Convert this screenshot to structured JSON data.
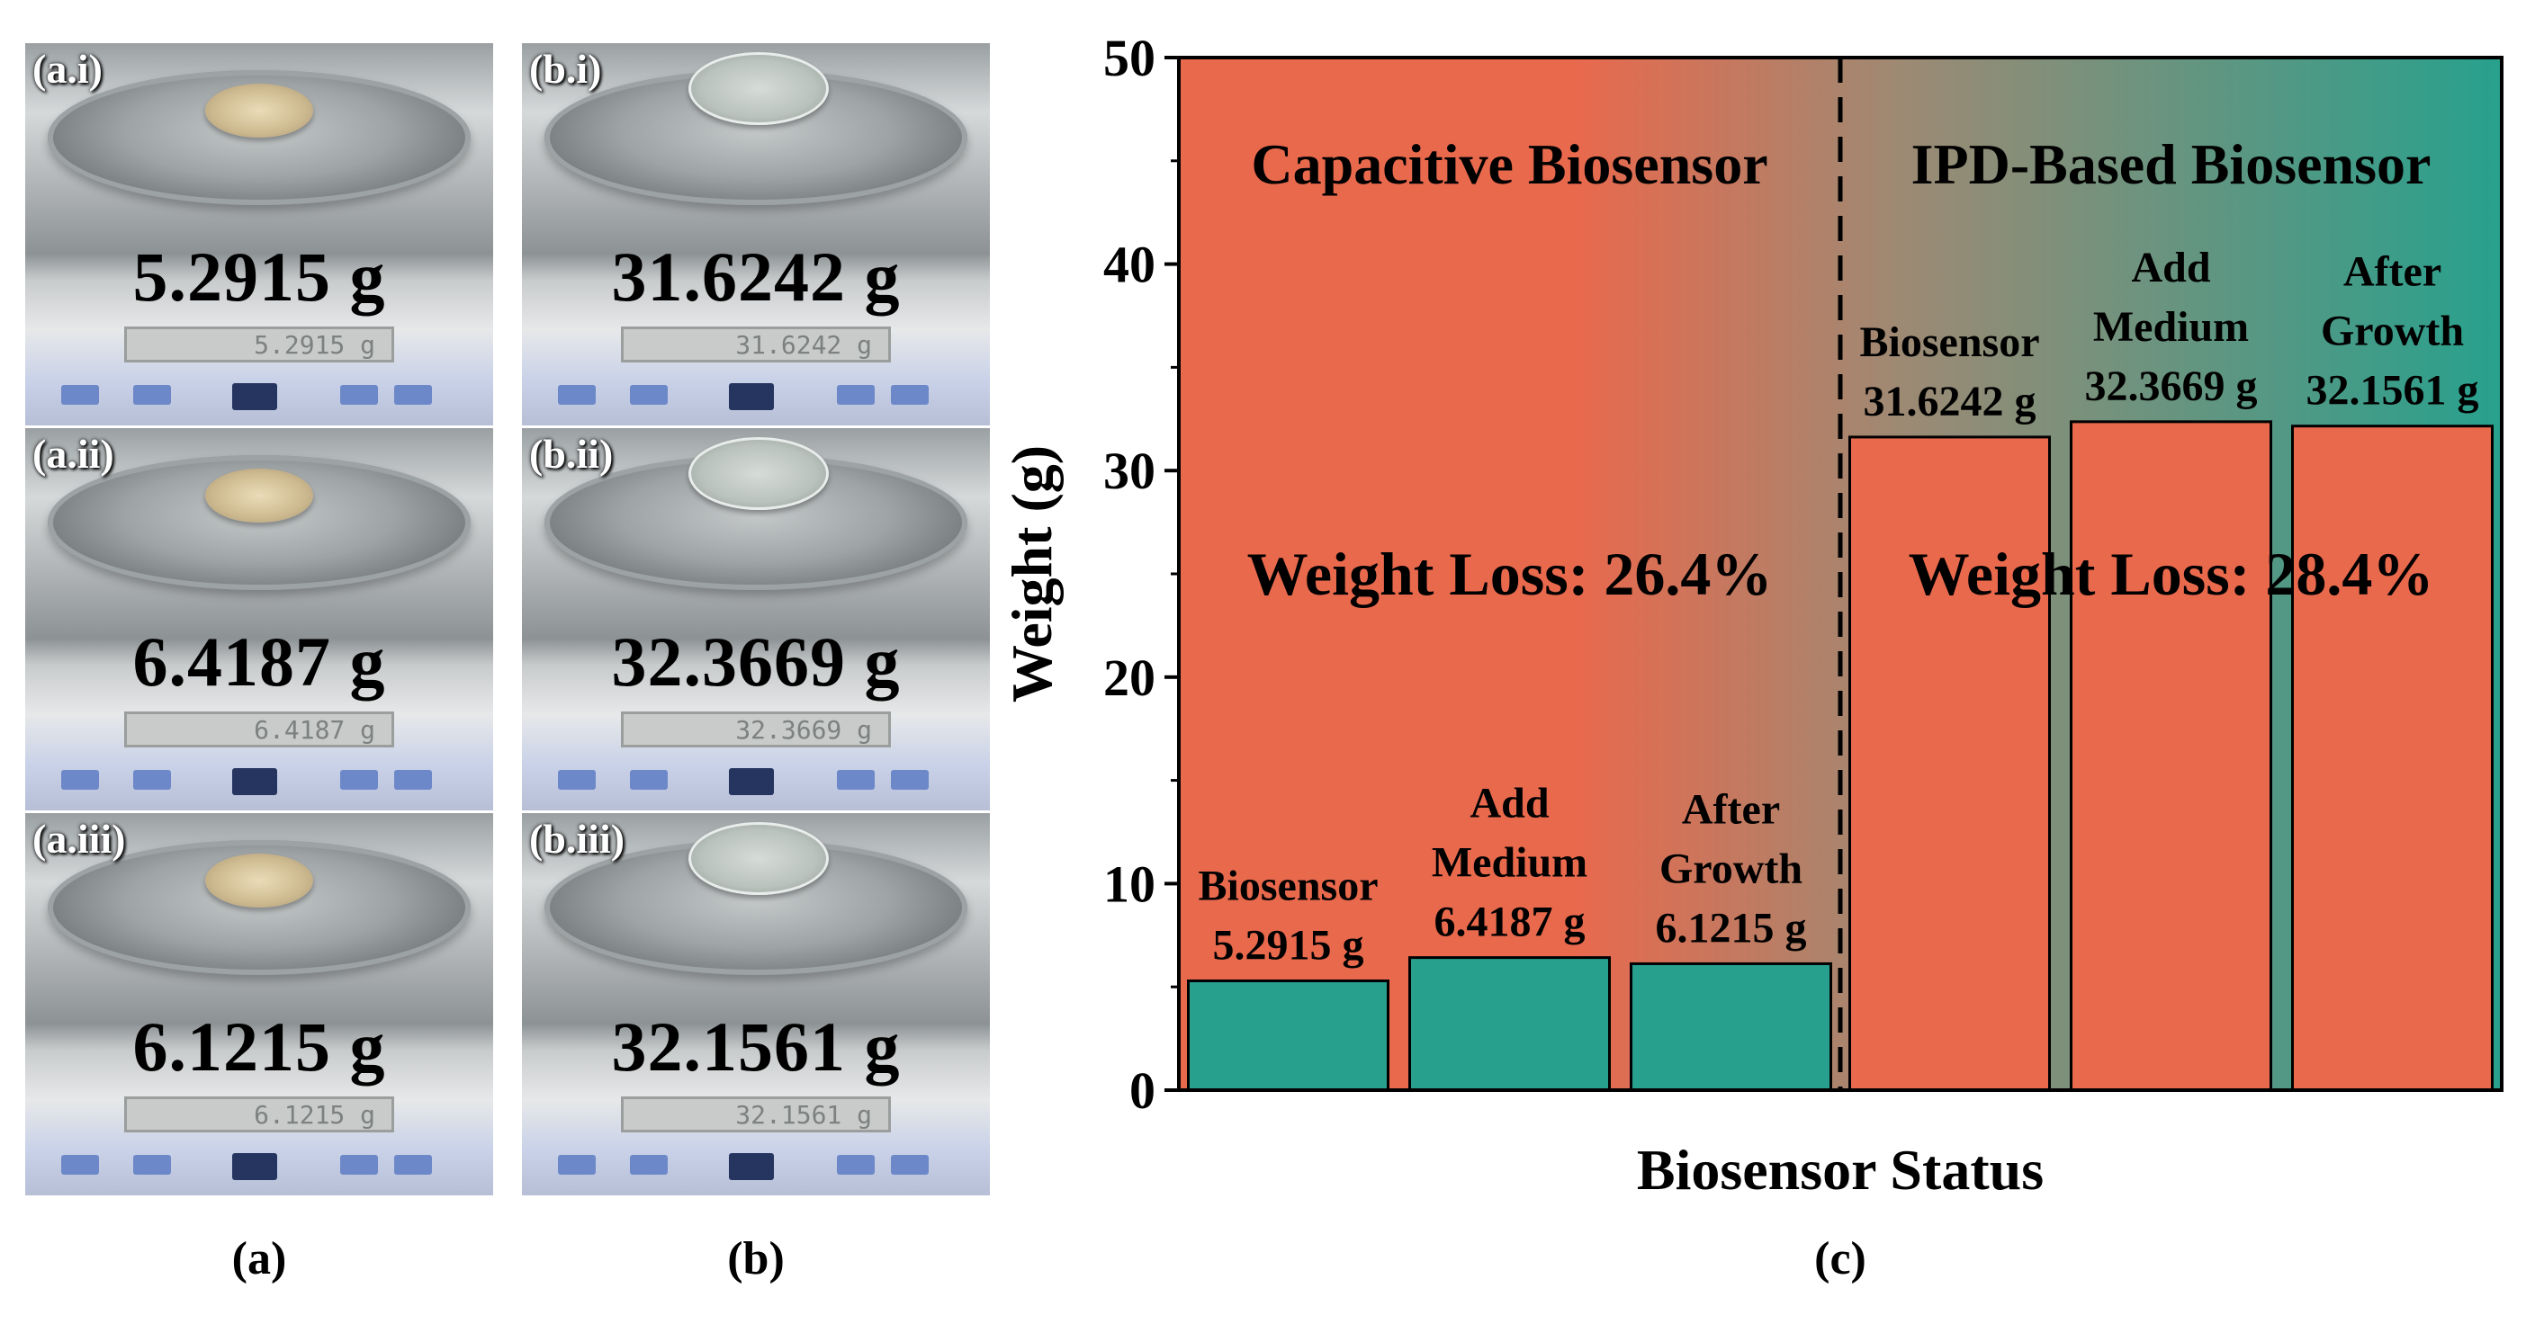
{
  "panels": {
    "a": {
      "label": "(a)",
      "photos": [
        {
          "tag": "(a.i)",
          "reading": "5.2915 g",
          "display": "5.2915 g"
        },
        {
          "tag": "(a.ii)",
          "reading": "6.4187 g",
          "display": "6.4187 g"
        },
        {
          "tag": "(a.iii)",
          "reading": "6.1215 g",
          "display": "6.1215 g"
        }
      ]
    },
    "b": {
      "label": "(b)",
      "photos": [
        {
          "tag": "(b.i)",
          "reading": "31.6242 g",
          "display": "31.6242 g"
        },
        {
          "tag": "(b.ii)",
          "reading": "32.3669 g",
          "display": "32.3669 g"
        },
        {
          "tag": "(b.iii)",
          "reading": "32.1561 g",
          "display": "32.1561 g"
        }
      ]
    },
    "c": {
      "label": "(c)"
    }
  },
  "chart_data": {
    "type": "bar",
    "xlabel": "Biosensor Status",
    "ylabel": "Weight (g)",
    "ylim": [
      0,
      50
    ],
    "yticks": [
      0,
      10,
      20,
      30,
      40,
      50
    ],
    "groups": [
      {
        "name": "Capacitive Biosensor",
        "weight_loss": "Weight Loss: 26.4%",
        "bars": [
          {
            "label": [
              "Biosensor"
            ],
            "value_text": "5.2915 g",
            "value": 5.2915
          },
          {
            "label": [
              "Add",
              "Medium"
            ],
            "value_text": "6.4187 g",
            "value": 6.4187
          },
          {
            "label": [
              "After",
              "Growth"
            ],
            "value_text": "6.1215 g",
            "value": 6.1215
          }
        ]
      },
      {
        "name": "IPD-Based Biosensor",
        "weight_loss": "Weight Loss: 28.4%",
        "bars": [
          {
            "label": [
              "Biosensor"
            ],
            "value_text": "31.6242 g",
            "value": 31.6242
          },
          {
            "label": [
              "Add",
              "Medium"
            ],
            "value_text": "32.3669 g",
            "value": 32.3669
          },
          {
            "label": [
              "After",
              "Growth"
            ],
            "value_text": "32.1561 g",
            "value": 32.1561
          }
        ]
      }
    ],
    "colors": {
      "capacitive_bg": "#e9694d",
      "ipd_bg": "#27a18d",
      "capacitive_bar": "#27a18d",
      "ipd_bar": "#e9694d",
      "mid_blend": "#9c8a74"
    }
  }
}
